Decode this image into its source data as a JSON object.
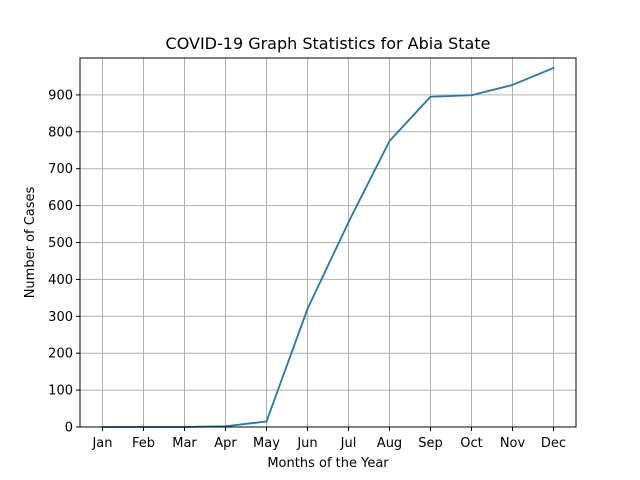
{
  "chart_data": {
    "type": "line",
    "title": "COVID-19 Graph Statistics for Abia State",
    "xlabel": "Months of the Year",
    "ylabel": "Number of Cases",
    "categories": [
      "Jan",
      "Feb",
      "Mar",
      "Apr",
      "May",
      "Jun",
      "Jul",
      "Aug",
      "Sep",
      "Oct",
      "Nov",
      "Dec"
    ],
    "series": [
      {
        "color": "#1f77b4",
        "values": [
          0,
          0,
          0,
          2,
          15,
          320,
          555,
          775,
          895,
          899,
          927,
          973
        ]
      }
    ],
    "yticks": [
      "0",
      "100",
      "200",
      "300",
      "400",
      "500",
      "600",
      "700",
      "800",
      "900"
    ],
    "ylim": [
      0,
      1000
    ],
    "grid": true,
    "legend": "none"
  }
}
